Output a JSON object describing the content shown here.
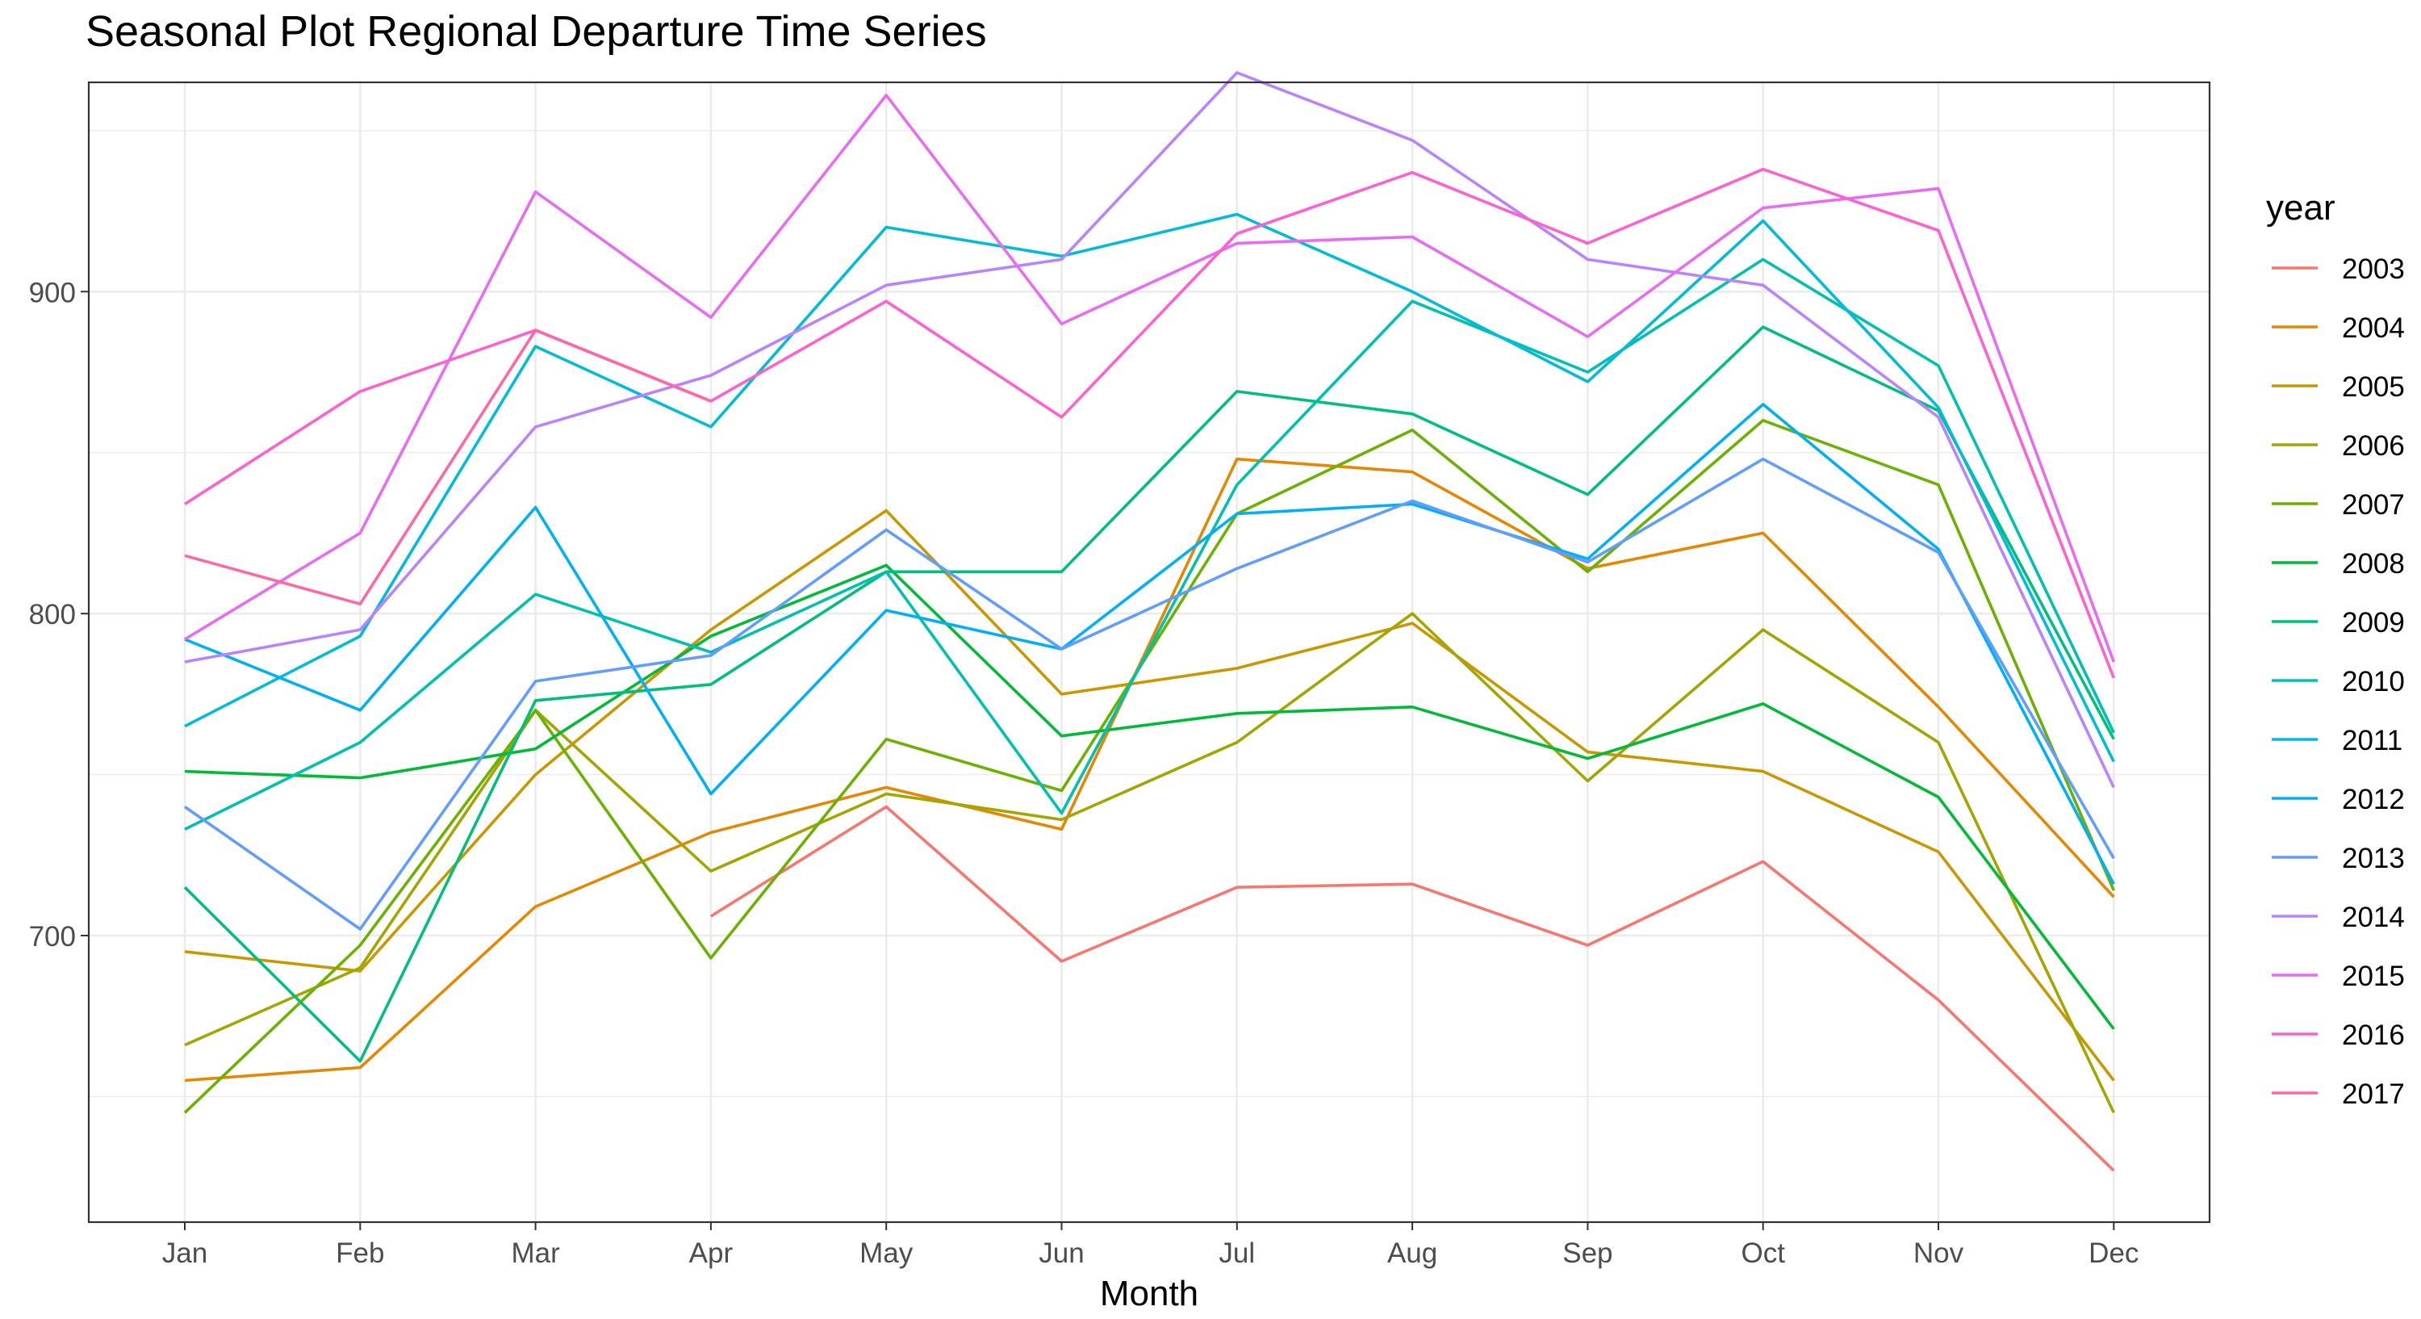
{
  "chart_data": {
    "type": "line",
    "title": "Seasonal Plot Regional Departure Time Series",
    "xlabel": "Month",
    "ylabel": "",
    "categories": [
      "Jan",
      "Feb",
      "Mar",
      "Apr",
      "May",
      "Jun",
      "Jul",
      "Aug",
      "Sep",
      "Oct",
      "Nov",
      "Dec"
    ],
    "ylim": [
      611,
      965
    ],
    "y_ticks": [
      700,
      800,
      900
    ],
    "grid": true,
    "legend_title": "year",
    "legend_position": "right",
    "series": [
      {
        "name": "2003",
        "color": "#F8766D",
        "values": [
          null,
          null,
          null,
          706,
          740,
          692,
          715,
          716,
          697,
          723,
          680,
          627
        ]
      },
      {
        "name": "2004",
        "color": "#E58700",
        "values": [
          655,
          659,
          709,
          732,
          746,
          733,
          848,
          844,
          814,
          825,
          771,
          712
        ]
      },
      {
        "name": "2005",
        "color": "#C99800",
        "values": [
          695,
          689,
          750,
          795,
          832,
          775,
          783,
          797,
          757,
          751,
          726,
          655
        ]
      },
      {
        "name": "2006",
        "color": "#A3A500",
        "values": [
          666,
          690,
          770,
          720,
          744,
          736,
          760,
          800,
          748,
          795,
          760,
          645
        ]
      },
      {
        "name": "2007",
        "color": "#6BB100",
        "values": [
          645,
          697,
          770,
          693,
          761,
          745,
          831,
          857,
          813,
          860,
          840,
          714
        ]
      },
      {
        "name": "2008",
        "color": "#00BA38",
        "values": [
          751,
          749,
          758,
          793,
          815,
          762,
          769,
          771,
          755,
          772,
          743,
          671
        ]
      },
      {
        "name": "2009",
        "color": "#00BF7D",
        "values": [
          715,
          661,
          773,
          778,
          813,
          813,
          869,
          862,
          837,
          889,
          863,
          761
        ]
      },
      {
        "name": "2010",
        "color": "#00C0AF",
        "values": [
          733,
          760,
          806,
          788,
          813,
          738,
          840,
          897,
          875,
          910,
          877,
          763
        ]
      },
      {
        "name": "2011",
        "color": "#00BCD8",
        "values": [
          765,
          793,
          883,
          858,
          920,
          911,
          924,
          900,
          872,
          922,
          864,
          754
        ]
      },
      {
        "name": "2012",
        "color": "#00B0F6",
        "values": [
          792,
          770,
          833,
          744,
          801,
          789,
          831,
          834,
          817,
          865,
          820,
          716
        ]
      },
      {
        "name": "2013",
        "color": "#619CFF",
        "values": [
          740,
          702,
          779,
          787,
          826,
          789,
          814,
          835,
          816,
          848,
          819,
          724
        ]
      },
      {
        "name": "2014",
        "color": "#B983FF",
        "values": [
          785,
          795,
          858,
          874,
          902,
          910,
          968,
          947,
          910,
          902,
          861,
          746
        ]
      },
      {
        "name": "2015",
        "color": "#E76BF3",
        "values": [
          792,
          825,
          931,
          892,
          961,
          890,
          915,
          917,
          886,
          926,
          932,
          785
        ]
      },
      {
        "name": "2016",
        "color": "#FD61D1",
        "values": [
          834,
          869,
          888,
          866,
          897,
          861,
          918,
          937,
          915,
          938,
          919,
          780
        ]
      },
      {
        "name": "2017",
        "color": "#FF67A4",
        "values": [
          818,
          803,
          888,
          866,
          null,
          null,
          null,
          null,
          null,
          null,
          null,
          null
        ]
      }
    ]
  }
}
